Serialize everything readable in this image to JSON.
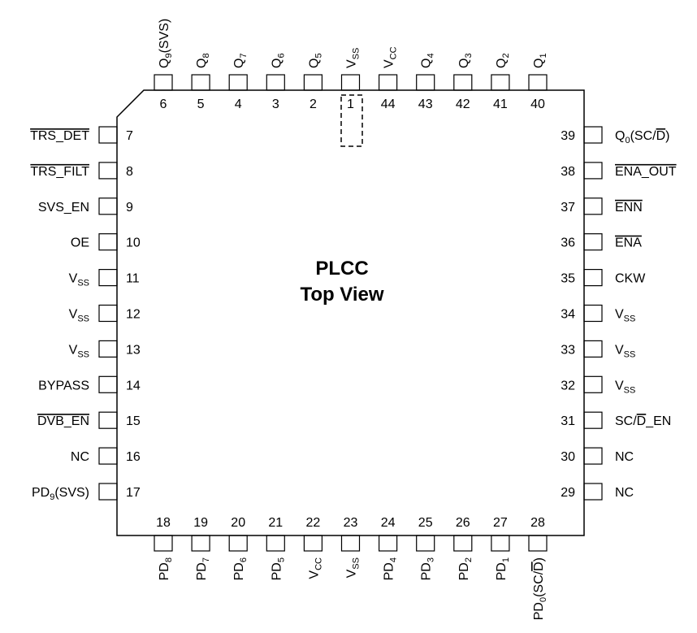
{
  "package": {
    "title_line1": "PLCC",
    "title_line2": "Top View"
  },
  "pins": {
    "top": [
      {
        "num": "6",
        "name": "Q",
        "sub": "9",
        "suffix": "(SVS)"
      },
      {
        "num": "5",
        "name": "Q",
        "sub": "8"
      },
      {
        "num": "4",
        "name": "Q",
        "sub": "7"
      },
      {
        "num": "3",
        "name": "Q",
        "sub": "6"
      },
      {
        "num": "2",
        "name": "Q",
        "sub": "5"
      },
      {
        "num": "1",
        "name": "V",
        "sub": "SS"
      },
      {
        "num": "44",
        "name": "V",
        "sub": "CC"
      },
      {
        "num": "43",
        "name": "Q",
        "sub": "4"
      },
      {
        "num": "42",
        "name": "Q",
        "sub": "3"
      },
      {
        "num": "41",
        "name": "Q",
        "sub": "2"
      },
      {
        "num": "40",
        "name": "Q",
        "sub": "1"
      }
    ],
    "left": [
      {
        "num": "7",
        "name": "TRS_DET",
        "over": true
      },
      {
        "num": "8",
        "name": "TRS_FILT",
        "over": true
      },
      {
        "num": "9",
        "name": "SVS_EN"
      },
      {
        "num": "10",
        "name": "OE"
      },
      {
        "num": "11",
        "name": "V",
        "sub": "SS"
      },
      {
        "num": "12",
        "name": "V",
        "sub": "SS"
      },
      {
        "num": "13",
        "name": "V",
        "sub": "SS"
      },
      {
        "num": "14",
        "name": "BYPASS"
      },
      {
        "num": "15",
        "name": "DVB_EN",
        "over": true
      },
      {
        "num": "16",
        "name": "NC"
      },
      {
        "num": "17",
        "name": "PD",
        "sub": "9",
        "suffix": "(SVS)"
      }
    ],
    "right": [
      {
        "num": "39",
        "name": "Q",
        "sub": "0",
        "suffix": "(SC/",
        "suffix_over": "D",
        "suffix_end": ")"
      },
      {
        "num": "38",
        "name": "ENA_OUT",
        "over": true
      },
      {
        "num": "37",
        "name": "ENN",
        "over": true
      },
      {
        "num": "36",
        "name": "ENA",
        "over": true
      },
      {
        "num": "35",
        "name": "CKW"
      },
      {
        "num": "34",
        "name": "V",
        "sub": "SS"
      },
      {
        "num": "33",
        "name": "V",
        "sub": "SS"
      },
      {
        "num": "32",
        "name": "V",
        "sub": "SS"
      },
      {
        "num": "31",
        "name": "SC/",
        "name_over": "D",
        "name_end": "_EN"
      },
      {
        "num": "30",
        "name": "NC"
      },
      {
        "num": "29",
        "name": "NC"
      }
    ],
    "bottom": [
      {
        "num": "18",
        "name": "PD",
        "sub": "8"
      },
      {
        "num": "19",
        "name": "PD",
        "sub": "7"
      },
      {
        "num": "20",
        "name": "PD",
        "sub": "6"
      },
      {
        "num": "21",
        "name": "PD",
        "sub": "5"
      },
      {
        "num": "22",
        "name": "V",
        "sub": "CC"
      },
      {
        "num": "23",
        "name": "V",
        "sub": "SS"
      },
      {
        "num": "24",
        "name": "PD",
        "sub": "4"
      },
      {
        "num": "25",
        "name": "PD",
        "sub": "3"
      },
      {
        "num": "26",
        "name": "PD",
        "sub": "2"
      },
      {
        "num": "27",
        "name": "PD",
        "sub": "1"
      },
      {
        "num": "28",
        "name": "PD",
        "sub": "0",
        "suffix": "(SC/",
        "suffix_over": "D",
        "suffix_end": ")"
      }
    ]
  }
}
